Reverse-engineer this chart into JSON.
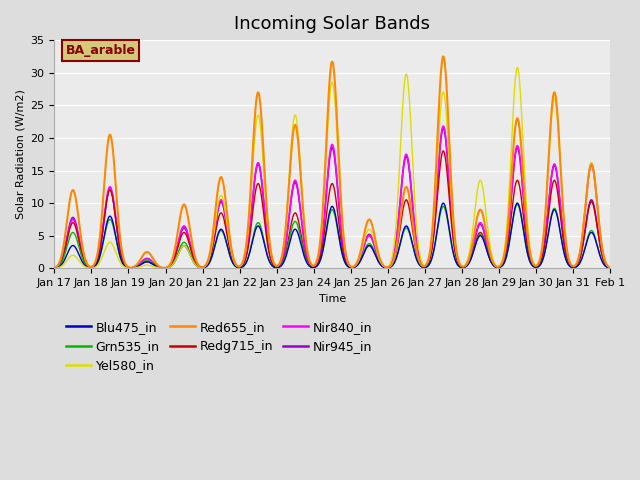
{
  "title": "Incoming Solar Bands",
  "xlabel": "Time",
  "ylabel": "Solar Radiation (W/m2)",
  "ylim": [
    0,
    35
  ],
  "yticks": [
    0,
    5,
    10,
    15,
    20,
    25,
    30,
    35
  ],
  "annotation_text": "BA_arable",
  "annotation_color": "#8B0000",
  "annotation_bg": "#d4c97a",
  "plot_bg": "#ebebeb",
  "series_order": [
    "Nir945_in",
    "Nir840_in",
    "Redg715_in",
    "Grn535_in",
    "Blu475_in",
    "Yel580_in",
    "Red655_in"
  ],
  "series": {
    "Blu475_in": {
      "color": "#0000CC",
      "lw": 1.0
    },
    "Grn535_in": {
      "color": "#00BB00",
      "lw": 1.0
    },
    "Yel580_in": {
      "color": "#DDDD00",
      "lw": 1.0
    },
    "Red655_in": {
      "color": "#FF8800",
      "lw": 1.5
    },
    "Redg715_in": {
      "color": "#CC0000",
      "lw": 1.0
    },
    "Nir840_in": {
      "color": "#FF00FF",
      "lw": 1.2
    },
    "Nir945_in": {
      "color": "#9900CC",
      "lw": 1.2
    }
  },
  "day_peaks": {
    "Jan17": {
      "Red655": 12.0,
      "Nir840": 7.5,
      "Nir945": 7.8,
      "Redg715": 7.0,
      "Blu475": 3.5,
      "Grn535": 5.5,
      "Yel580": 2.0
    },
    "Jan18": {
      "Red655": 20.5,
      "Nir840": 12.5,
      "Nir945": 12.2,
      "Redg715": 12.0,
      "Blu475": 8.0,
      "Grn535": 7.5,
      "Yel580": 4.0
    },
    "Jan19": {
      "Red655": 2.5,
      "Nir840": 1.5,
      "Nir945": 1.5,
      "Redg715": 1.0,
      "Blu475": 1.0,
      "Grn535": 1.2,
      "Yel580": 0.5
    },
    "Jan20": {
      "Red655": 9.8,
      "Nir840": 6.5,
      "Nir945": 6.2,
      "Redg715": 5.5,
      "Blu475": 3.5,
      "Grn535": 4.0,
      "Yel580": 3.5
    },
    "Jan21": {
      "Red655": 14.0,
      "Nir840": 10.5,
      "Nir945": 10.2,
      "Redg715": 8.5,
      "Blu475": 6.0,
      "Grn535": 5.8,
      "Yel580": 11.2
    },
    "Jan22": {
      "Red655": 27.0,
      "Nir840": 16.2,
      "Nir945": 16.0,
      "Redg715": 13.0,
      "Blu475": 6.5,
      "Grn535": 7.0,
      "Yel580": 23.5
    },
    "Jan23": {
      "Red655": 22.0,
      "Nir840": 13.5,
      "Nir945": 13.2,
      "Redg715": 8.5,
      "Blu475": 6.0,
      "Grn535": 7.2,
      "Yel580": 23.5
    },
    "Jan24": {
      "Red655": 31.7,
      "Nir840": 19.0,
      "Nir945": 18.5,
      "Redg715": 13.0,
      "Blu475": 9.5,
      "Grn535": 9.0,
      "Yel580": 28.5
    },
    "Jan25": {
      "Red655": 7.5,
      "Nir840": 5.0,
      "Nir945": 5.2,
      "Redg715": 3.5,
      "Blu475": 3.5,
      "Grn535": 3.8,
      "Yel580": 6.0
    },
    "Jan26": {
      "Red655": 12.5,
      "Nir840": 17.5,
      "Nir945": 17.2,
      "Redg715": 10.5,
      "Blu475": 6.5,
      "Grn535": 6.2,
      "Yel580": 29.8
    },
    "Jan27": {
      "Red655": 32.5,
      "Nir840": 21.8,
      "Nir945": 21.5,
      "Redg715": 18.0,
      "Blu475": 10.0,
      "Grn535": 9.5,
      "Yel580": 27.0
    },
    "Jan28": {
      "Red655": 9.0,
      "Nir840": 7.0,
      "Nir945": 6.8,
      "Redg715": 5.5,
      "Blu475": 5.0,
      "Grn535": 5.2,
      "Yel580": 13.5
    },
    "Jan29": {
      "Red655": 23.0,
      "Nir840": 18.8,
      "Nir945": 18.5,
      "Redg715": 13.5,
      "Blu475": 10.0,
      "Grn535": 9.8,
      "Yel580": 30.8
    },
    "Jan30": {
      "Red655": 27.0,
      "Nir840": 16.0,
      "Nir945": 15.8,
      "Redg715": 13.5,
      "Blu475": 9.0,
      "Grn535": 9.2,
      "Yel580": 26.0
    },
    "Jan31": {
      "Red655": 16.0,
      "Nir840": 15.8,
      "Nir945": 10.5,
      "Redg715": 10.2,
      "Blu475": 5.5,
      "Grn535": 5.8,
      "Yel580": 16.2
    }
  },
  "xtick_positions": [
    0,
    1,
    2,
    3,
    4,
    5,
    6,
    7,
    8,
    9,
    10,
    11,
    12,
    13,
    14,
    15
  ],
  "xtick_labels": [
    "Jan 17",
    "Jan 18",
    "Jan 19",
    "Jan 20",
    "Jan 21",
    "Jan 22",
    "Jan 23",
    "Jan 24",
    "Jan 25",
    "Jan 26",
    "Jan 27",
    "Jan 28",
    "Jan 29",
    "Jan 30",
    "Jan 31",
    "Feb 1"
  ],
  "title_fontsize": 13,
  "legend_fontsize": 9,
  "axis_fontsize": 8,
  "legend_entries": [
    {
      "label": "Blu475_in",
      "color": "#0000CC"
    },
    {
      "label": "Grn535_in",
      "color": "#00BB00"
    },
    {
      "label": "Yel580_in",
      "color": "#DDDD00"
    },
    {
      "label": "Red655_in",
      "color": "#FF8800"
    },
    {
      "label": "Redg715_in",
      "color": "#CC0000"
    },
    {
      "label": "Nir840_in",
      "color": "#FF00FF"
    },
    {
      "label": "Nir945_in",
      "color": "#9900CC"
    }
  ]
}
